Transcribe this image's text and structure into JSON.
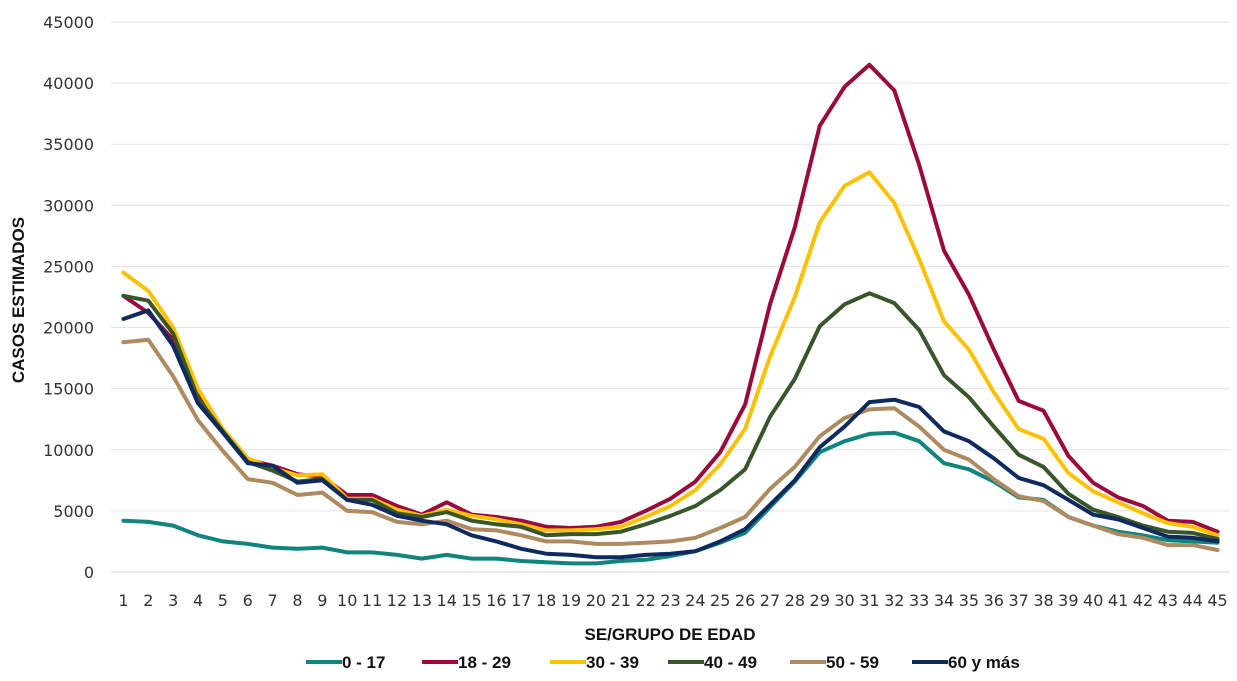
{
  "chart_data": {
    "type": "line",
    "xlabel": "SE/GRUPO DE EDAD",
    "ylabel": "CASOS ESTIMADOS",
    "ylim": [
      0,
      45000
    ],
    "yticks": [
      0,
      5000,
      10000,
      15000,
      20000,
      25000,
      30000,
      35000,
      40000,
      45000
    ],
    "grid": "horizontal",
    "legend": "bottom",
    "x": [
      1,
      2,
      3,
      4,
      5,
      6,
      7,
      8,
      9,
      10,
      11,
      12,
      13,
      14,
      15,
      16,
      17,
      18,
      19,
      20,
      21,
      22,
      23,
      24,
      25,
      26,
      27,
      28,
      29,
      30,
      31,
      32,
      33,
      34,
      35,
      36,
      37,
      38,
      39,
      40,
      41,
      42,
      43,
      44,
      45
    ],
    "series": [
      {
        "name": "0 - 17",
        "color": "#12847e",
        "values": [
          4200,
          4100,
          3800,
          3000,
          2500,
          2300,
          2000,
          1900,
          2000,
          1600,
          1600,
          1400,
          1100,
          1400,
          1100,
          1100,
          900,
          800,
          700,
          700,
          900,
          1000,
          1300,
          1700,
          2400,
          3200,
          5300,
          7400,
          9800,
          10700,
          11300,
          11400,
          10700,
          8900,
          8400,
          7400,
          6100,
          5900,
          4500,
          3800,
          3300,
          3000,
          2600,
          2500,
          2400
        ]
      },
      {
        "name": "18 - 29",
        "color": "#9b0a3c",
        "values": [
          22600,
          21200,
          19000,
          14600,
          11500,
          9200,
          8700,
          8000,
          7800,
          6300,
          6300,
          5400,
          4700,
          5700,
          4700,
          4500,
          4200,
          3700,
          3600,
          3700,
          4100,
          5000,
          6000,
          7400,
          9800,
          13700,
          21900,
          28200,
          36500,
          39700,
          41500,
          39400,
          33300,
          26300,
          22700,
          18200,
          14000,
          13200,
          9500,
          7300,
          6100,
          5400,
          4200,
          4100,
          3300
        ]
      },
      {
        "name": "30 - 39",
        "color": "#fbc102",
        "values": [
          24500,
          23000,
          20000,
          15000,
          11700,
          9300,
          8500,
          7900,
          8000,
          6000,
          6000,
          5100,
          4600,
          5100,
          4600,
          4300,
          3900,
          3400,
          3400,
          3500,
          3700,
          4500,
          5400,
          6700,
          8800,
          11700,
          17600,
          22500,
          28600,
          31600,
          32700,
          30200,
          25600,
          20500,
          18200,
          14700,
          11700,
          10900,
          8100,
          6600,
          5700,
          4800,
          4000,
          3700,
          3000
        ]
      },
      {
        "name": "40 - 49",
        "color": "#38552b",
        "values": [
          22600,
          22200,
          19500,
          14200,
          11500,
          9000,
          8300,
          7400,
          7600,
          5900,
          5900,
          4800,
          4500,
          4900,
          4200,
          3900,
          3700,
          3000,
          3100,
          3100,
          3300,
          3900,
          4600,
          5400,
          6700,
          8400,
          12700,
          15800,
          20100,
          21900,
          22800,
          22000,
          19800,
          16100,
          14300,
          11900,
          9600,
          8600,
          6400,
          5100,
          4500,
          3800,
          3300,
          3200,
          2700
        ]
      },
      {
        "name": "50 - 59",
        "color": "#ae8a60",
        "values": [
          18800,
          19000,
          16000,
          12400,
          9900,
          7600,
          7300,
          6300,
          6500,
          5000,
          4900,
          4100,
          3900,
          4200,
          3500,
          3400,
          3000,
          2500,
          2500,
          2300,
          2300,
          2400,
          2500,
          2800,
          3600,
          4500,
          6800,
          8600,
          11100,
          12600,
          13300,
          13400,
          11900,
          10000,
          9200,
          7600,
          6200,
          5800,
          4500,
          3800,
          3100,
          2800,
          2200,
          2200,
          1800
        ]
      },
      {
        "name": "60 y más",
        "color": "#0f2a5e",
        "values": [
          20700,
          21400,
          18500,
          13800,
          11400,
          8900,
          8700,
          7300,
          7500,
          5900,
          5500,
          4600,
          4200,
          3900,
          3000,
          2500,
          1900,
          1500,
          1400,
          1200,
          1200,
          1400,
          1500,
          1700,
          2500,
          3500,
          5500,
          7500,
          10200,
          11900,
          13900,
          14100,
          13500,
          11500,
          10700,
          9300,
          7700,
          7100,
          5900,
          4700,
          4300,
          3600,
          2900,
          2800,
          2500
        ]
      }
    ]
  }
}
